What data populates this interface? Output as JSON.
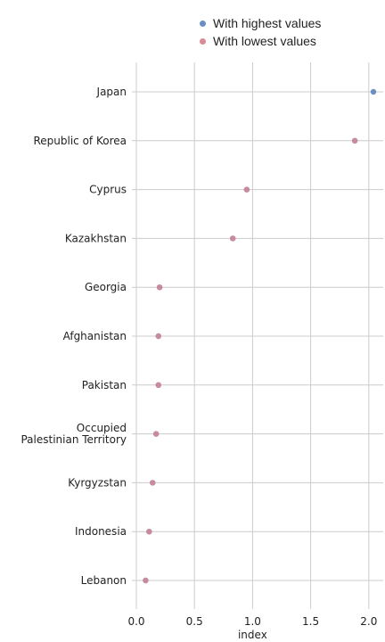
{
  "chart_data": {
    "type": "scatter",
    "orientation": "horizontal",
    "categories": [
      "Japan",
      "Republic of Korea",
      "Cyprus",
      "Kazakhstan",
      "Georgia",
      "Afghanistan",
      "Pakistan",
      "Occupied Palestinian Territory",
      "Kyrgyzstan",
      "Indonesia",
      "Lebanon"
    ],
    "category_labels": [
      [
        "Japan"
      ],
      [
        "Republic of Korea"
      ],
      [
        "Cyprus"
      ],
      [
        "Kazakhstan"
      ],
      [
        "Georgia"
      ],
      [
        "Afghanistan"
      ],
      [
        "Pakistan"
      ],
      [
        "Occupied",
        "Palestinian Territory"
      ],
      [
        "Kyrgyzstan"
      ],
      [
        "Indonesia"
      ],
      [
        "Lebanon"
      ]
    ],
    "series": [
      {
        "name": "With highest values",
        "color": "#6b8fc4",
        "values": [
          2.04,
          1.88,
          0.95,
          0.83,
          0.2,
          0.19,
          0.19,
          0.17,
          0.14,
          0.11,
          0.08
        ]
      },
      {
        "name": "With lowest values",
        "color": "#d98a96",
        "values": [
          null,
          1.88,
          0.95,
          0.83,
          0.2,
          0.19,
          0.19,
          0.17,
          0.14,
          0.11,
          0.08
        ]
      }
    ],
    "xlabel": "index",
    "ylabel": "",
    "xlim": [
      0,
      2.1
    ],
    "xticks": [
      0,
      0.5,
      1,
      1.5,
      2
    ],
    "xtick_labels": [
      "0.0",
      "0.5",
      "1.0",
      "1.5",
      "2.0"
    ],
    "grid": true,
    "legend_position": "top"
  },
  "legend": {
    "items": [
      {
        "label": "With highest values",
        "color": "#6b8fc4"
      },
      {
        "label": "With lowest values",
        "color": "#d98a96"
      }
    ]
  }
}
